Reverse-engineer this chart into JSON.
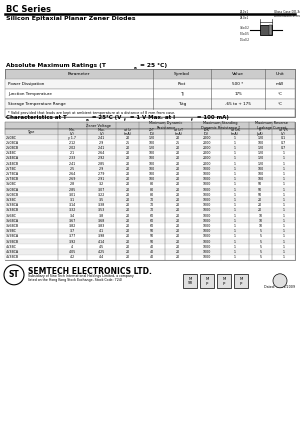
{
  "title": "BC Series",
  "subtitle": "Silicon Epitaxial Planar Zener Diodes",
  "abs_max_title": "Absolute Maximum Ratings (Ta = 25 °C)",
  "abs_max_headers": [
    "Parameter",
    "Symbol",
    "Value",
    "Unit"
  ],
  "abs_max_rows": [
    [
      "Power Dissipation",
      "Ptot",
      "500 *",
      "mW"
    ],
    [
      "Junction Temperature",
      "Tj",
      "175",
      "°C"
    ],
    [
      "Storage Temperature Range",
      "Tstg",
      "-65 to + 175",
      "°C"
    ]
  ],
  "abs_max_note": "* Valid provided that leads are kept at ambient temperature at a distance of 8 mm from case.",
  "char_title": "Characteristics at Ta = 25°C (Vf = 1 V Max. at If = 100 mA)",
  "char_rows": [
    [
      "2V0BC",
      "y 1.7",
      "2.41",
      "20",
      "120",
      "20",
      "2000",
      "1",
      "120",
      "0.1"
    ],
    [
      "2V0BCA",
      "2.12",
      "2.9",
      "25",
      "100",
      "25",
      "2000",
      "1",
      "100",
      "0.7"
    ],
    [
      "2V0BCB",
      "2.02",
      "2.41",
      "20",
      "120",
      "20",
      "2000",
      "1",
      "120",
      "0.7"
    ],
    [
      "2V4BC",
      "2.1",
      "2.64",
      "20",
      "100",
      "20",
      "2000",
      "1",
      "120",
      "1"
    ],
    [
      "2V4BCA",
      "2.33",
      "2.92",
      "20",
      "100",
      "20",
      "2000",
      "1",
      "120",
      "1"
    ],
    [
      "2V4BCB",
      "2.41",
      "2.85",
      "20",
      "100",
      "20",
      "2000",
      "1",
      "120",
      "1"
    ],
    [
      "2V7BC",
      "2.5",
      "2.9",
      "20",
      "100",
      "20",
      "1000",
      "1",
      "100",
      "1"
    ],
    [
      "2V7BCA",
      "2.64",
      "2.79",
      "20",
      "100",
      "20",
      "1000",
      "1",
      "100",
      "1"
    ],
    [
      "2V7BCB",
      "2.69",
      "2.91",
      "20",
      "100",
      "20",
      "1000",
      "1",
      "100",
      "1"
    ],
    [
      "3V0BC",
      "2.8",
      "3.2",
      "20",
      "80",
      "20",
      "1000",
      "1",
      "50",
      "1"
    ],
    [
      "3V0BCA",
      "2.85",
      "3.07",
      "20",
      "80",
      "20",
      "1000",
      "1",
      "50",
      "1"
    ],
    [
      "3V0BCB",
      "3.01",
      "3.22",
      "20",
      "80",
      "20",
      "1000",
      "1",
      "50",
      "1"
    ],
    [
      "3V3BC",
      "3.1",
      "3.5",
      "20",
      "70",
      "20",
      "1000",
      "1",
      "20",
      "1"
    ],
    [
      "3V3BCA",
      "3.14",
      "3.38",
      "20",
      "70",
      "20",
      "1000",
      "1",
      "20",
      "1"
    ],
    [
      "3V3BCB",
      "3.32",
      "3.53",
      "20",
      "70",
      "20",
      "1000",
      "1",
      "20",
      "1"
    ],
    [
      "3V6BC",
      "3.4",
      "3.8",
      "20",
      "60",
      "20",
      "1000",
      "1",
      "10",
      "1"
    ],
    [
      "3V6BCA",
      "3.67",
      "3.68",
      "20",
      "60",
      "20",
      "1000",
      "1",
      "10",
      "1"
    ],
    [
      "3V6BCB",
      "3.82",
      "3.83",
      "20",
      "60",
      "20",
      "1000",
      "1",
      "10",
      "1"
    ],
    [
      "3V9BC",
      "3.7",
      "4.1",
      "20",
      "50",
      "20",
      "1000",
      "1",
      "5",
      "1"
    ],
    [
      "3V9BCA",
      "3.77",
      "3.98",
      "20",
      "50",
      "20",
      "1000",
      "1",
      "5",
      "1"
    ],
    [
      "3V9BCB",
      "3.92",
      "4.14",
      "20",
      "50",
      "20",
      "1000",
      "1",
      "5",
      "1"
    ],
    [
      "4V3BC",
      "4",
      "4.5",
      "20",
      "40",
      "20",
      "1000",
      "1",
      "5",
      "1"
    ],
    [
      "4V3BCA",
      "4.05",
      "4.25",
      "20",
      "40",
      "20",
      "1000",
      "1",
      "5",
      "1"
    ],
    [
      "4V3BCB",
      "4.2",
      "4.4",
      "20",
      "40",
      "20",
      "1000",
      "1",
      "5",
      "1"
    ]
  ],
  "footer_company": "SEMTECH ELECTRONICS LTD.",
  "footer_sub": "Subsidiary of Sino Tech International Holdings Limited, a company\nlisted on the Hong Kong Stock Exchange, Stock Code: 724)",
  "footer_date": "Dated: 19/01/2009",
  "bg_color": "#ffffff",
  "border_color": "#888888",
  "text_color": "#000000"
}
